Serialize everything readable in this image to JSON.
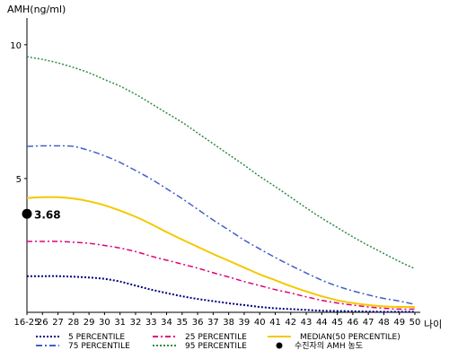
{
  "chart_data": {
    "type": "line",
    "ylabel": "AMH(ng/ml)",
    "xlabel": "나이",
    "ylim": [
      0,
      11
    ],
    "yticks": [
      5,
      10
    ],
    "grid": false,
    "legend_position": "bottom",
    "categories": [
      "16-25",
      "26",
      "27",
      "28",
      "29",
      "30",
      "31",
      "32",
      "33",
      "34",
      "35",
      "36",
      "37",
      "38",
      "39",
      "40",
      "41",
      "42",
      "43",
      "44",
      "45",
      "46",
      "47",
      "48",
      "49",
      "50"
    ],
    "series": [
      {
        "name": "5 PERCENTILE",
        "color": "#000080",
        "dash": "2,2",
        "width": 2,
        "values": [
          1.35,
          1.35,
          1.35,
          1.33,
          1.3,
          1.25,
          1.15,
          1.0,
          0.85,
          0.72,
          0.6,
          0.5,
          0.42,
          0.34,
          0.27,
          0.2,
          0.15,
          0.12,
          0.09,
          0.06,
          0.05,
          0.04,
          0.03,
          0.02,
          0.02,
          0.02
        ]
      },
      {
        "name": "25 PERCENTILE",
        "color": "#e0007a",
        "dash": "6,3,2,3",
        "width": 1.5,
        "values": [
          2.65,
          2.65,
          2.65,
          2.62,
          2.58,
          2.5,
          2.4,
          2.27,
          2.1,
          1.95,
          1.8,
          1.65,
          1.48,
          1.32,
          1.15,
          1.0,
          0.85,
          0.72,
          0.58,
          0.45,
          0.35,
          0.27,
          0.2,
          0.15,
          0.12,
          0.12
        ]
      },
      {
        "name": "MEDIAN(50 PERCENTILE)",
        "color": "#f5c800",
        "dash": "",
        "width": 2,
        "values": [
          4.27,
          4.3,
          4.3,
          4.25,
          4.15,
          4.0,
          3.8,
          3.57,
          3.3,
          3.0,
          2.72,
          2.45,
          2.18,
          1.93,
          1.67,
          1.42,
          1.2,
          0.98,
          0.78,
          0.6,
          0.45,
          0.35,
          0.27,
          0.22,
          0.2,
          0.2
        ]
      },
      {
        "name": "75 PERCENTILE",
        "color": "#4060c8",
        "dash": "7,3,2,3",
        "width": 1.5,
        "values": [
          6.2,
          6.22,
          6.22,
          6.2,
          6.05,
          5.85,
          5.6,
          5.3,
          4.98,
          4.62,
          4.25,
          3.85,
          3.45,
          3.08,
          2.7,
          2.37,
          2.05,
          1.75,
          1.47,
          1.2,
          0.98,
          0.8,
          0.65,
          0.52,
          0.42,
          0.3
        ]
      },
      {
        "name": "95 PERCENTILE",
        "color": "#2e8b3e",
        "dash": "2,2",
        "width": 1.5,
        "values": [
          9.55,
          9.45,
          9.32,
          9.15,
          8.95,
          8.7,
          8.45,
          8.15,
          7.8,
          7.45,
          7.1,
          6.7,
          6.3,
          5.9,
          5.5,
          5.08,
          4.7,
          4.3,
          3.9,
          3.52,
          3.17,
          2.82,
          2.5,
          2.2,
          1.9,
          1.63
        ]
      }
    ],
    "legend": [
      {
        "label": "5 PERCENTILE",
        "color": "#000080",
        "dash": "2,2",
        "kind": "line"
      },
      {
        "label": "25 PERCENTILE",
        "color": "#e0007a",
        "dash": "6,3,2,3",
        "kind": "line"
      },
      {
        "label": "MEDIAN(50 PERCENTILE)",
        "color": "#f5c800",
        "dash": "",
        "kind": "line"
      },
      {
        "label": "75 PERCENTILE",
        "color": "#4060c8",
        "dash": "7,3,2,3",
        "kind": "line"
      },
      {
        "label": "95 PERCENTILE",
        "color": "#2e8b3e",
        "dash": "2,2",
        "kind": "line"
      },
      {
        "label": "수진자의 AMH 농도",
        "color": "#000000",
        "dash": "",
        "kind": "dot"
      }
    ],
    "marker": {
      "category": "16-25",
      "value": 3.68,
      "label": "3.68"
    }
  }
}
